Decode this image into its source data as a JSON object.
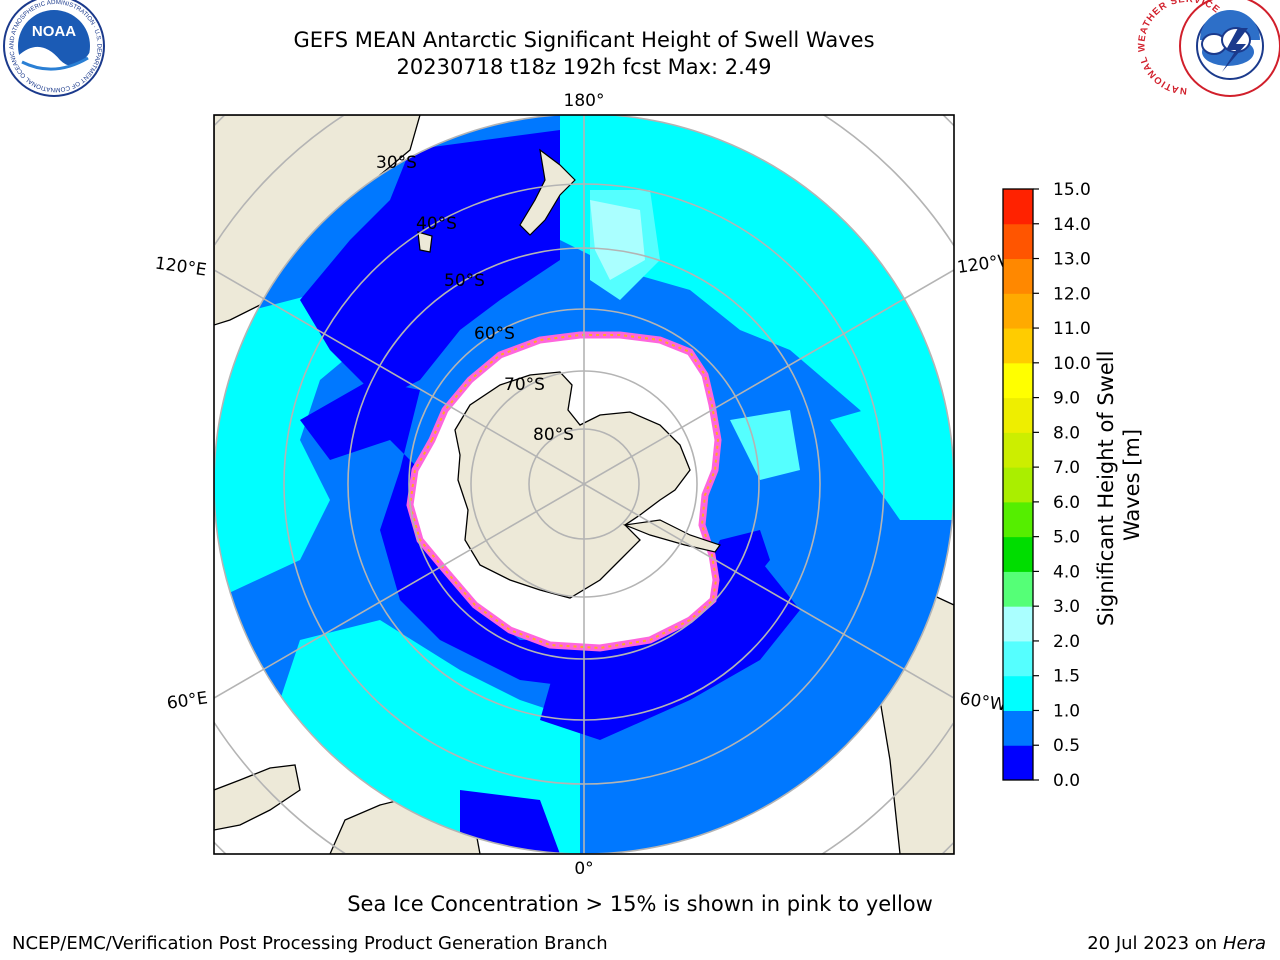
{
  "header": {
    "title_line1": "GEFS MEAN Antarctic Significant Height of Swell Waves",
    "title_line2": "20230718 t18z 192h fcst   Max: 2.49"
  },
  "logos": {
    "left": {
      "name": "noaa-logo",
      "text": "NOAA",
      "ring_text": "NATIONAL OCEANIC AND ATMOSPHERIC ADMINISTRATION · U.S. DEPARTMENT OF COMMERCE"
    },
    "right": {
      "name": "nws-logo",
      "ring_text": "NATIONAL WEATHER SERVICE"
    }
  },
  "map": {
    "projection": "south-polar-stereographic",
    "meridian_labels": [
      "180°",
      "120°E",
      "120°W",
      "60°E",
      "60°W",
      "0°"
    ],
    "latitude_labels": [
      "30°S",
      "40°S",
      "50°S",
      "60°S",
      "70°S",
      "80°S"
    ],
    "colors": {
      "land": "#ede9d8",
      "ice_fill": "#ffffff",
      "ice_edge_pink": "#ff66dd",
      "ice_edge_yellow": "#ffaa22",
      "grid": "#b4b4b4"
    }
  },
  "colorbar": {
    "label": "Significant Height of Swell Waves [m]",
    "ticks": [
      "0.0",
      "0.5",
      "1.0",
      "1.5",
      "2.0",
      "3.0",
      "4.0",
      "5.0",
      "6.0",
      "7.0",
      "8.0",
      "9.0",
      "10.0",
      "11.0",
      "12.0",
      "13.0",
      "14.0",
      "15.0"
    ],
    "colors": [
      "#0000ff",
      "#0078ff",
      "#00ffff",
      "#55ffff",
      "#aaffff",
      "#55ff77",
      "#00dd00",
      "#55ee00",
      "#aaee00",
      "#ccee00",
      "#eeee00",
      "#ffff00",
      "#ffcc00",
      "#ffaa00",
      "#ff8800",
      "#ff5500",
      "#ff2200",
      "#ff0000"
    ]
  },
  "caption": "Sea Ice Concentration > 15% is shown in pink to yellow",
  "footer": {
    "left": "NCEP/EMC/Verification Post Processing Product Generation Branch",
    "right_date": "20 Jul 2023 on",
    "right_host": "Hera"
  }
}
